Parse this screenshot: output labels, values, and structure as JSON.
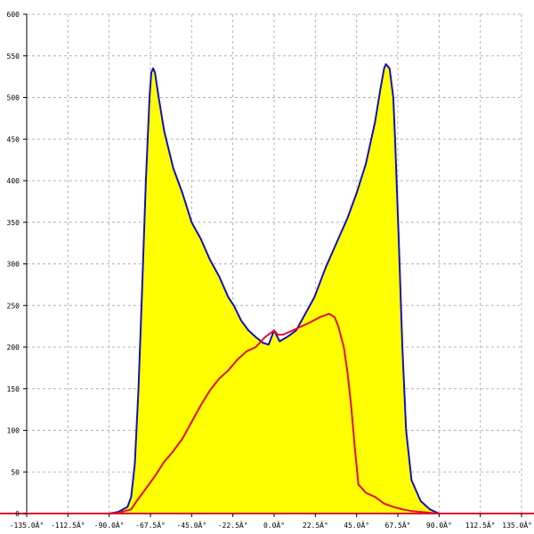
{
  "chart_data": {
    "type": "area",
    "title": "",
    "xlabel": "",
    "ylabel": "",
    "xlim": [
      -135,
      135
    ],
    "ylim": [
      0,
      600
    ],
    "grid": true,
    "x_ticks": [
      {
        "value": -135,
        "label": "-135.0Â°"
      },
      {
        "value": -112.5,
        "label": "-112.5Â°"
      },
      {
        "value": -90,
        "label": "-90.0Â°"
      },
      {
        "value": -67.5,
        "label": "-67.5Â°"
      },
      {
        "value": -45,
        "label": "-45.0Â°"
      },
      {
        "value": -22.5,
        "label": "-22.5Â°"
      },
      {
        "value": 0,
        "label": "0.0Â°"
      },
      {
        "value": 22.5,
        "label": "22.5Â°"
      },
      {
        "value": 45,
        "label": "45.0Â°"
      },
      {
        "value": 67.5,
        "label": "67.5Â°"
      },
      {
        "value": 90,
        "label": "90.0Â°"
      },
      {
        "value": 112.5,
        "label": "112.5Â°"
      },
      {
        "value": 135,
        "label": "135.0Â°"
      }
    ],
    "y_ticks": [
      0,
      50,
      100,
      150,
      200,
      250,
      300,
      350,
      400,
      450,
      500,
      550,
      600
    ],
    "series": [
      {
        "color": "#1010c0",
        "fill": "#ffff00",
        "points": [
          [
            -135,
            0
          ],
          [
            -90,
            0
          ],
          [
            -85,
            2
          ],
          [
            -80,
            8
          ],
          [
            -78,
            20
          ],
          [
            -76,
            60
          ],
          [
            -74,
            150
          ],
          [
            -72,
            270
          ],
          [
            -70,
            400
          ],
          [
            -68,
            500
          ],
          [
            -67,
            530
          ],
          [
            -66,
            535
          ],
          [
            -65,
            530
          ],
          [
            -63,
            500
          ],
          [
            -60,
            460
          ],
          [
            -55,
            415
          ],
          [
            -50,
            385
          ],
          [
            -45,
            350
          ],
          [
            -40,
            330
          ],
          [
            -35,
            305
          ],
          [
            -30,
            285
          ],
          [
            -25,
            260
          ],
          [
            -22,
            250
          ],
          [
            -18,
            232
          ],
          [
            -14,
            220
          ],
          [
            -10,
            212
          ],
          [
            -6,
            205
          ],
          [
            -3,
            203
          ],
          [
            0,
            220
          ],
          [
            3,
            207
          ],
          [
            7,
            212
          ],
          [
            12,
            220
          ],
          [
            17,
            240
          ],
          [
            22,
            260
          ],
          [
            28,
            295
          ],
          [
            35,
            330
          ],
          [
            40,
            355
          ],
          [
            45,
            385
          ],
          [
            50,
            420
          ],
          [
            55,
            470
          ],
          [
            58,
            510
          ],
          [
            60,
            535
          ],
          [
            61,
            540
          ],
          [
            63,
            535
          ],
          [
            65,
            500
          ],
          [
            66,
            450
          ],
          [
            68,
            330
          ],
          [
            70,
            200
          ],
          [
            72,
            100
          ],
          [
            75,
            40
          ],
          [
            80,
            15
          ],
          [
            85,
            5
          ],
          [
            90,
            0
          ],
          [
            135,
            0
          ]
        ]
      },
      {
        "color": "#e01030",
        "points": [
          [
            -135,
            0
          ],
          [
            -90,
            0
          ],
          [
            -85,
            1
          ],
          [
            -78,
            5
          ],
          [
            -75,
            15
          ],
          [
            -70,
            30
          ],
          [
            -65,
            45
          ],
          [
            -60,
            62
          ],
          [
            -55,
            75
          ],
          [
            -50,
            90
          ],
          [
            -45,
            110
          ],
          [
            -40,
            130
          ],
          [
            -35,
            148
          ],
          [
            -30,
            162
          ],
          [
            -25,
            172
          ],
          [
            -20,
            185
          ],
          [
            -15,
            195
          ],
          [
            -10,
            200
          ],
          [
            -5,
            212
          ],
          [
            0,
            220
          ],
          [
            2,
            215
          ],
          [
            5,
            215
          ],
          [
            10,
            220
          ],
          [
            15,
            225
          ],
          [
            20,
            230
          ],
          [
            25,
            236
          ],
          [
            30,
            240
          ],
          [
            33,
            236
          ],
          [
            35,
            225
          ],
          [
            38,
            200
          ],
          [
            40,
            170
          ],
          [
            42,
            130
          ],
          [
            44,
            80
          ],
          [
            46,
            35
          ],
          [
            50,
            25
          ],
          [
            55,
            20
          ],
          [
            60,
            12
          ],
          [
            65,
            8
          ],
          [
            70,
            5
          ],
          [
            75,
            3
          ],
          [
            80,
            2
          ],
          [
            85,
            1
          ],
          [
            90,
            0
          ],
          [
            135,
            0
          ]
        ]
      }
    ]
  }
}
